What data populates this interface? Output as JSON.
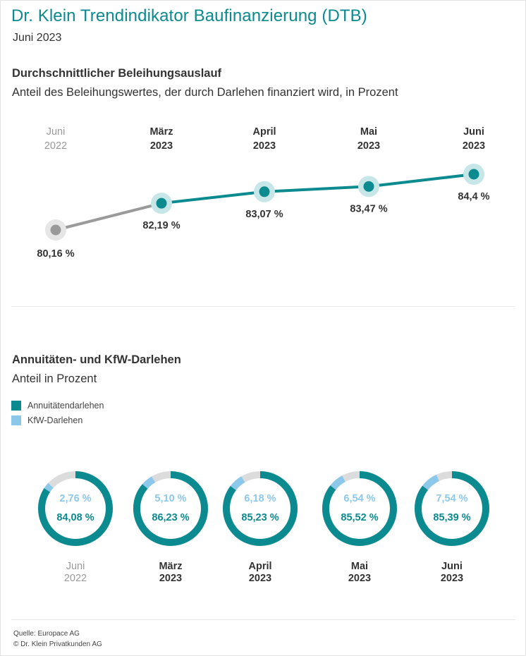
{
  "header": {
    "title": "Dr. Klein Trendindikator Baufinanzierung (DTB)",
    "subtitle": "Juni 2023"
  },
  "line_section": {
    "title": "Durchschnittlicher Beleihungsauslauf",
    "subtitle": "Anteil des Beleihungswertes, der durch Darlehen finanziert wird, in Prozent"
  },
  "donut_section": {
    "title": "Annuitäten- und KfW-Darlehen",
    "subtitle": "Anteil in Prozent",
    "legend": [
      "Annuitätendarlehen",
      "KfW-Darlehen"
    ]
  },
  "footer": {
    "source": "Quelle: Europace AG",
    "copyright": "© Dr. Klein Privatkunden AG"
  },
  "colors": {
    "teal": "#0b8a8f",
    "teal_halo": "#c7e6e8",
    "light_blue": "#8cc8ea",
    "gray": "#9a9a9a",
    "gray_halo": "#e6e6e6",
    "track": "#dcdcdc"
  },
  "chart_data": [
    {
      "type": "line",
      "title": "Durchschnittlicher Beleihungsauslauf",
      "categories": [
        {
          "month": "Juni",
          "year": "2022"
        },
        {
          "month": "März",
          "year": "2023"
        },
        {
          "month": "April",
          "year": "2023"
        },
        {
          "month": "Mai",
          "year": "2023"
        },
        {
          "month": "Juni",
          "year": "2023"
        }
      ],
      "values": [
        80.16,
        82.19,
        83.07,
        83.47,
        84.4
      ],
      "labels": [
        "80,16 %",
        "82,19 %",
        "83,07 %",
        "83,47 %",
        "84,4 %"
      ],
      "ylim": [
        79,
        86
      ]
    },
    {
      "type": "pie",
      "title": "Annuitäten- und KfW-Darlehen",
      "categories": [
        {
          "month": "Juni",
          "year": "2022"
        },
        {
          "month": "März",
          "year": "2023"
        },
        {
          "month": "April",
          "year": "2023"
        },
        {
          "month": "Mai",
          "year": "2023"
        },
        {
          "month": "Juni",
          "year": "2023"
        }
      ],
      "series": [
        {
          "name": "Annuitätendarlehen",
          "values": [
            84.08,
            86.23,
            85.23,
            85.52,
            85.39
          ],
          "labels": [
            "84,08 %",
            "86,23 %",
            "85,23 %",
            "85,52 %",
            "85,39 %"
          ]
        },
        {
          "name": "KfW-Darlehen",
          "values": [
            2.76,
            5.1,
            6.18,
            6.54,
            7.54
          ],
          "labels": [
            "2,76 %",
            "5,10 %",
            "6,18 %",
            "6,54 %",
            "7,54 %"
          ]
        }
      ]
    }
  ]
}
